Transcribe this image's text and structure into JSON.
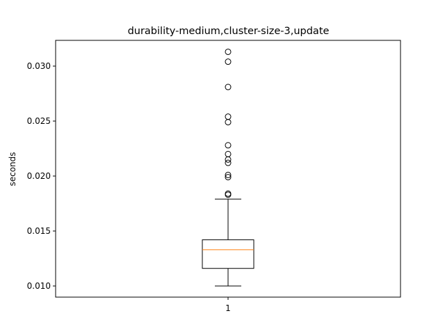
{
  "chart_data": {
    "type": "box",
    "title": "durability-medium,cluster-size-3,update",
    "xlabel": "",
    "ylabel": "seconds",
    "categories": [
      "1"
    ],
    "ylim": [
      0.009,
      0.0324
    ],
    "yticks": [
      0.01,
      0.015,
      0.02,
      0.025,
      0.03
    ],
    "ytick_labels": [
      "0.010",
      "0.015",
      "0.020",
      "0.025",
      "0.030"
    ],
    "grid": false,
    "boxes": [
      {
        "category": "1",
        "whisker_low": 0.01,
        "q1": 0.0116,
        "median": 0.0133,
        "q3": 0.0142,
        "whisker_high": 0.0179,
        "outliers": [
          0.0183,
          0.0184,
          0.0199,
          0.0201,
          0.0212,
          0.0215,
          0.022,
          0.0228,
          0.0249,
          0.0254,
          0.0281,
          0.0304,
          0.0313
        ]
      }
    ],
    "colors": {
      "box": "#000000",
      "median": "#ff7f0e",
      "whisker": "#000000",
      "outlier": "#000000",
      "background": "#ffffff"
    }
  }
}
